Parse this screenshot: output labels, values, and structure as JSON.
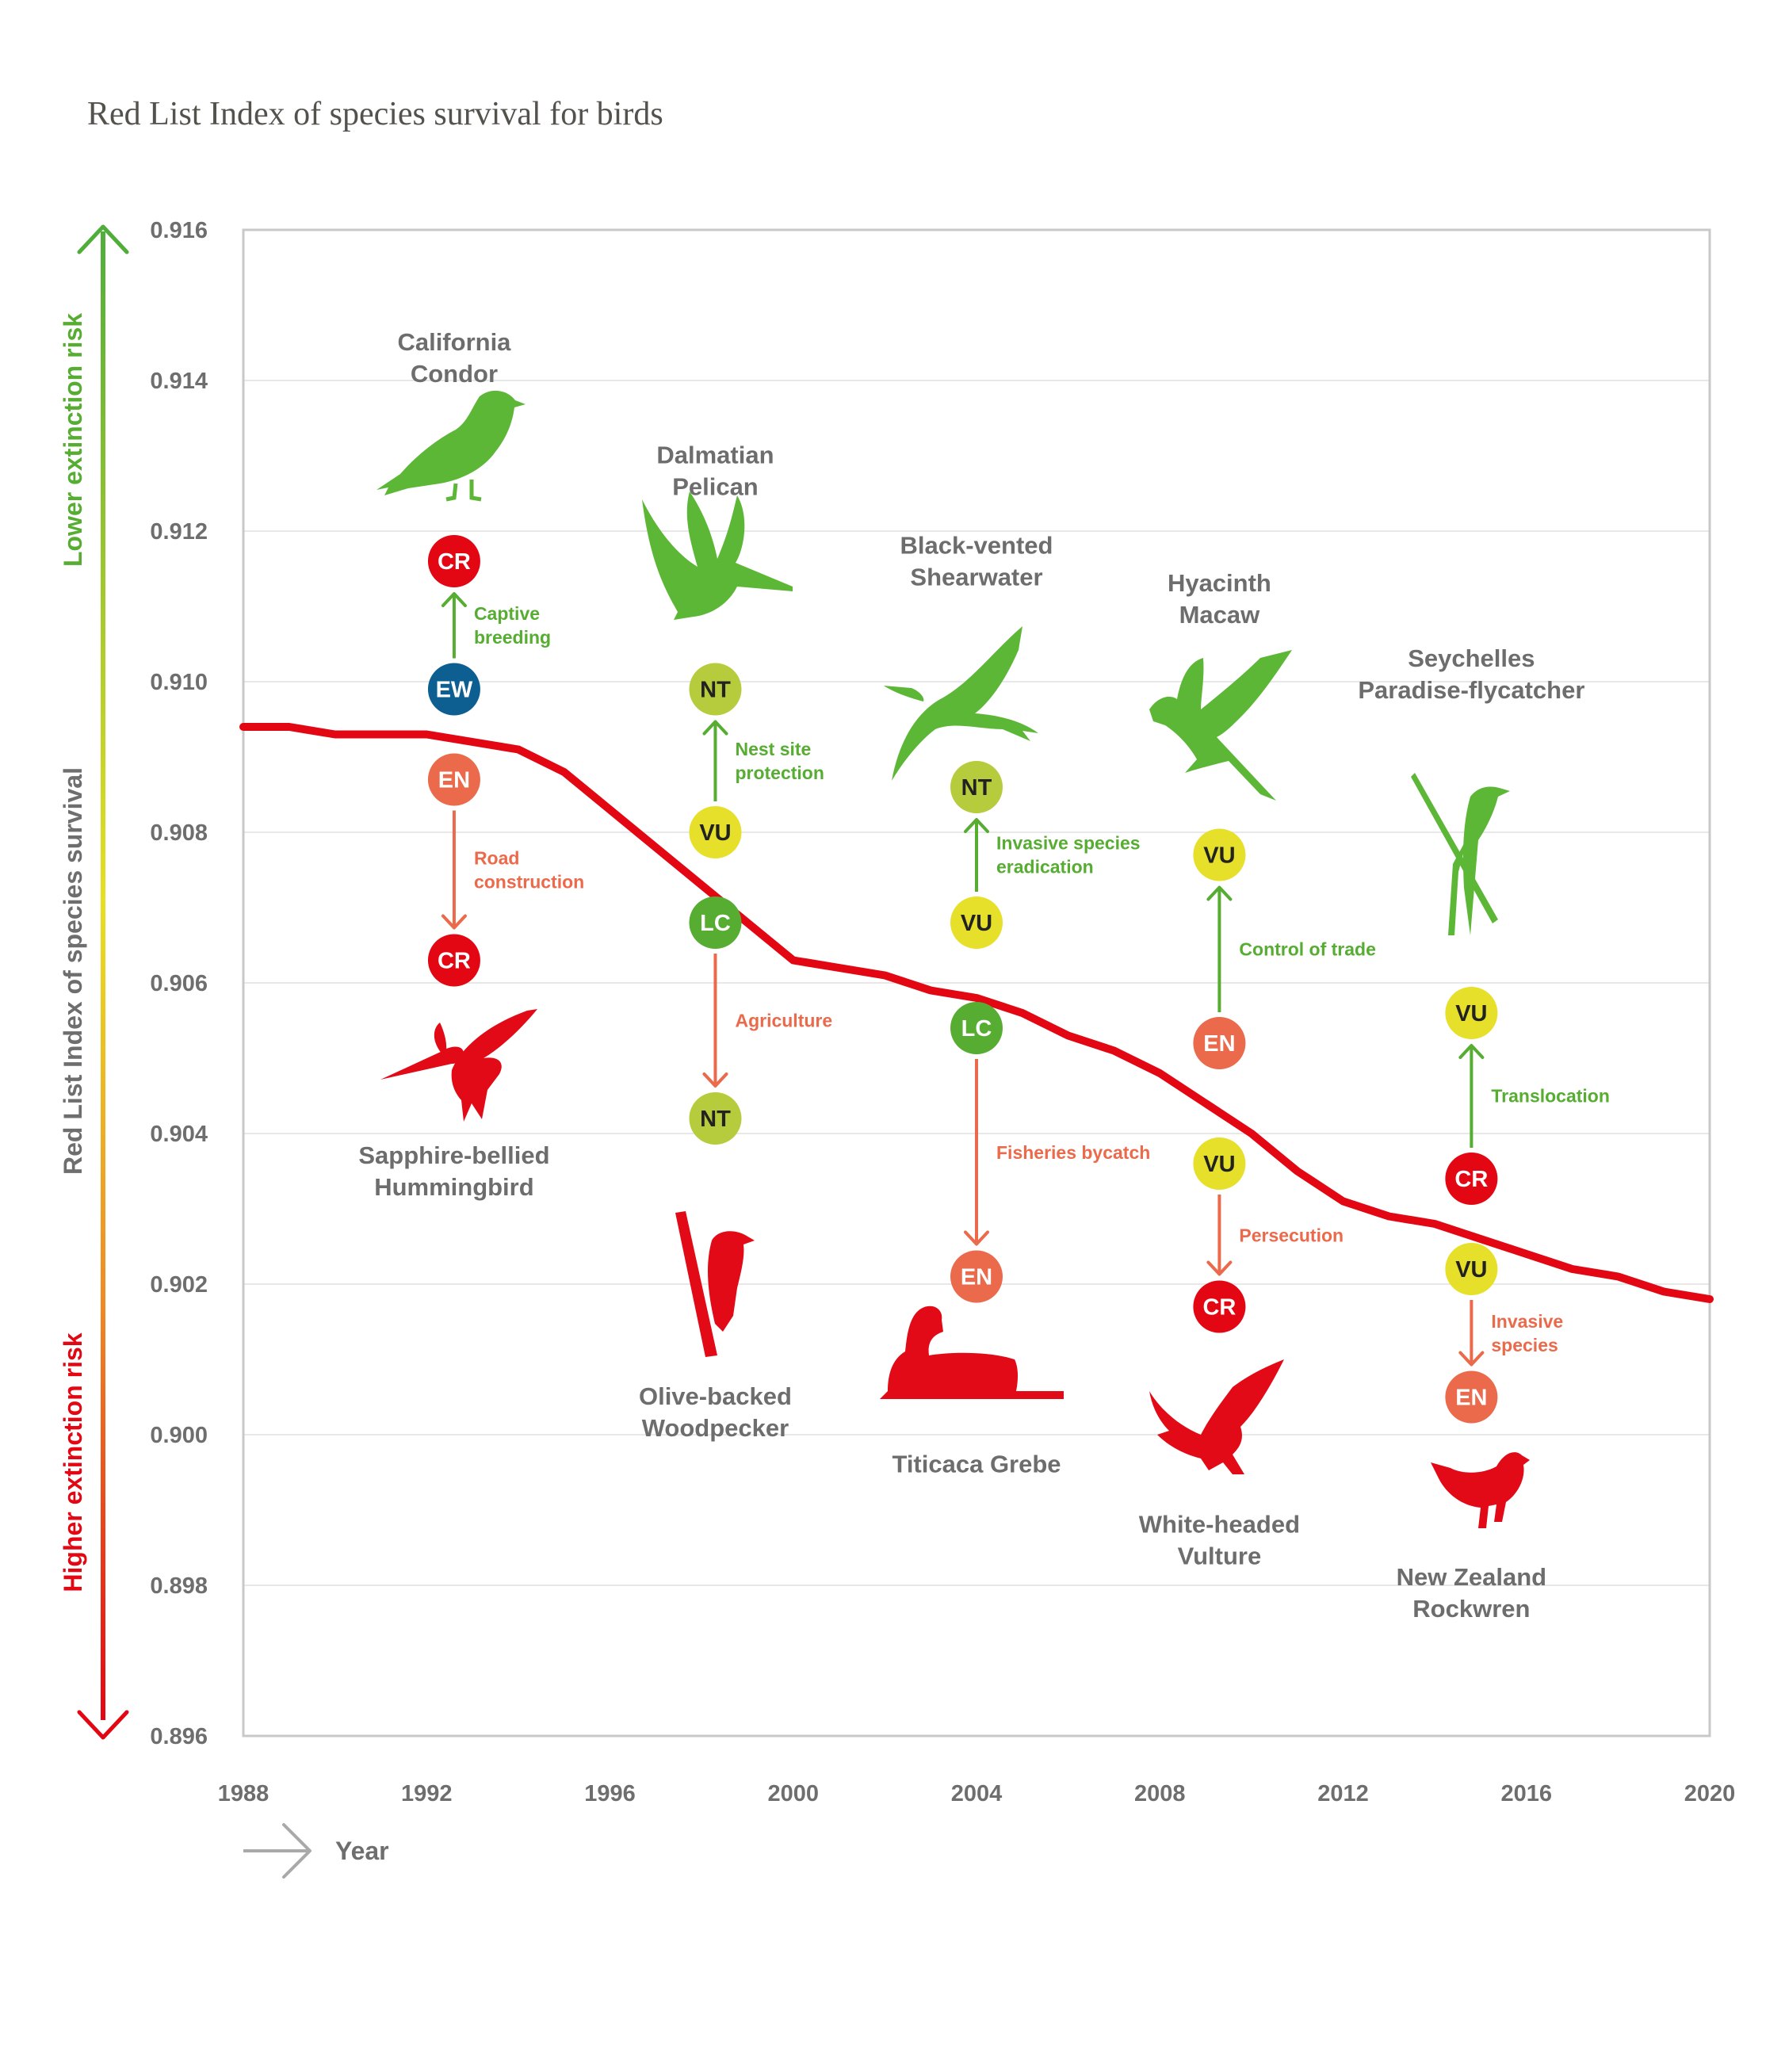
{
  "title": "Red List Index of species survival for birds",
  "colors": {
    "line": "#e30613",
    "up": "#56ad32",
    "down": "#ea6a4b",
    "grid": "#e8e8e8",
    "frame": "#c8c8c8",
    "bird_up": "#5db737",
    "bird_down": "#e20a16"
  },
  "status_colors": {
    "CR": "#e30613",
    "EN": "#ea6a4b",
    "VU": "#e6e02a",
    "NT": "#b7cc3c",
    "LC": "#56ad32",
    "EW": "#0e5f91"
  },
  "status_text_colors": {
    "CR": "#ffffff",
    "EN": "#ffffff",
    "VU": "#222222",
    "NT": "#222222",
    "LC": "#ffffff",
    "EW": "#ffffff"
  },
  "axis": {
    "y_label": "Red List Index of species survival",
    "x_label": "Year",
    "lower_risk": "Lower extinction risk",
    "higher_risk": "Higher extinction risk"
  },
  "chart_data": {
    "type": "line",
    "title": "Red List Index of species survival for birds",
    "xlabel": "Year",
    "ylabel": "Red List Index of species survival",
    "xlim": [
      1988,
      2020
    ],
    "ylim": [
      0.896,
      0.916
    ],
    "xticks": [
      1988,
      1992,
      1996,
      2000,
      2004,
      2008,
      2012,
      2016,
      2020
    ],
    "yticks": [
      0.896,
      0.898,
      0.9,
      0.902,
      0.904,
      0.906,
      0.908,
      0.91,
      0.912,
      0.914,
      0.916
    ],
    "ytick_labels": [
      "0.896",
      "0.898",
      "0.900",
      "0.902",
      "0.904",
      "0.906",
      "0.908",
      "0.910",
      "0.912",
      "0.914",
      "0.916"
    ],
    "grid": true,
    "series": [
      {
        "name": "Birds",
        "x": [
          1988,
          1989,
          1990,
          1991,
          1992,
          1993,
          1994,
          1995,
          1996,
          1997,
          1998,
          1999,
          2000,
          2001,
          2002,
          2003,
          2004,
          2005,
          2006,
          2007,
          2008,
          2009,
          2010,
          2011,
          2012,
          2013,
          2014,
          2015,
          2016,
          2017,
          2018,
          2019,
          2020
        ],
        "values": [
          0.9094,
          0.9094,
          0.9093,
          0.9093,
          0.9093,
          0.9092,
          0.9091,
          0.9088,
          0.9083,
          0.9078,
          0.9073,
          0.9068,
          0.9063,
          0.9062,
          0.9061,
          0.9059,
          0.9058,
          0.9056,
          0.9053,
          0.9051,
          0.9048,
          0.9044,
          0.904,
          0.9035,
          0.9031,
          0.9029,
          0.9028,
          0.9026,
          0.9024,
          0.9022,
          0.9021,
          0.9019,
          0.9018
        ]
      }
    ],
    "annotations": [
      {
        "x": 1992.6,
        "direction": "up",
        "from": "EW",
        "to": "CR",
        "from_y": 0.9099,
        "to_y": 0.9116,
        "action_lines": [
          "Captive",
          "breeding"
        ],
        "bird_lines": [
          "California",
          "Condor"
        ],
        "bird_label_y": 0.9144
      },
      {
        "x": 1992.6,
        "direction": "down",
        "from": "EN",
        "to": "CR",
        "from_y": 0.9087,
        "to_y": 0.9063,
        "action_lines": [
          "Road",
          "construction"
        ],
        "bird_lines": [
          "Sapphire-bellied",
          "Hummingbird"
        ],
        "bird_label_y": 0.9036
      },
      {
        "x": 1998.3,
        "direction": "up",
        "from": "VU",
        "to": "NT",
        "from_y": 0.908,
        "to_y": 0.9099,
        "action_lines": [
          "Nest site",
          "protection"
        ],
        "bird_lines": [
          "Dalmatian",
          "Pelican"
        ],
        "bird_label_y": 0.9129
      },
      {
        "x": 1998.3,
        "direction": "down",
        "from": "LC",
        "to": "NT",
        "from_y": 0.9068,
        "to_y": 0.9042,
        "action_lines": [
          "Agriculture"
        ],
        "bird_lines": [
          "Olive-backed",
          "Woodpecker"
        ],
        "bird_label_y": 0.9004
      },
      {
        "x": 2004.0,
        "direction": "up",
        "from": "VU",
        "to": "NT",
        "from_y": 0.9068,
        "to_y": 0.9086,
        "action_lines": [
          "Invasive species",
          "eradication"
        ],
        "bird_lines": [
          "Black-vented",
          "Shearwater"
        ],
        "bird_label_y": 0.9117
      },
      {
        "x": 2004.0,
        "direction": "down",
        "from": "LC",
        "to": "EN",
        "from_y": 0.9054,
        "to_y": 0.9021,
        "action_lines": [
          "Fisheries bycatch"
        ],
        "bird_lines": [
          "Titicaca Grebe"
        ],
        "bird_label_y": 0.8995
      },
      {
        "x": 2009.3,
        "direction": "up",
        "from": "EN",
        "to": "VU",
        "from_y": 0.9052,
        "to_y": 0.9077,
        "action_lines": [
          "Control of trade"
        ],
        "bird_lines": [
          "Hyacinth",
          "Macaw"
        ],
        "bird_label_y": 0.9112
      },
      {
        "x": 2009.3,
        "direction": "down",
        "from": "VU",
        "to": "CR",
        "from_y": 0.9036,
        "to_y": 0.9017,
        "action_lines": [
          "Persecution"
        ],
        "bird_lines": [
          "White-headed",
          "Vulture"
        ],
        "bird_label_y": 0.8987
      },
      {
        "x": 2014.8,
        "direction": "up",
        "from": "CR",
        "to": "VU",
        "from_y": 0.9034,
        "to_y": 0.9056,
        "action_lines": [
          "Translocation"
        ],
        "bird_lines": [
          "Seychelles",
          "Paradise-flycatcher"
        ],
        "bird_label_y": 0.9102
      },
      {
        "x": 2014.8,
        "direction": "down",
        "from": "VU",
        "to": "EN",
        "from_y": 0.9022,
        "to_y": 0.9005,
        "action_lines": [
          "Invasive",
          "species"
        ],
        "bird_lines": [
          "New Zealand",
          "Rockwren"
        ],
        "bird_label_y": 0.898
      }
    ]
  }
}
